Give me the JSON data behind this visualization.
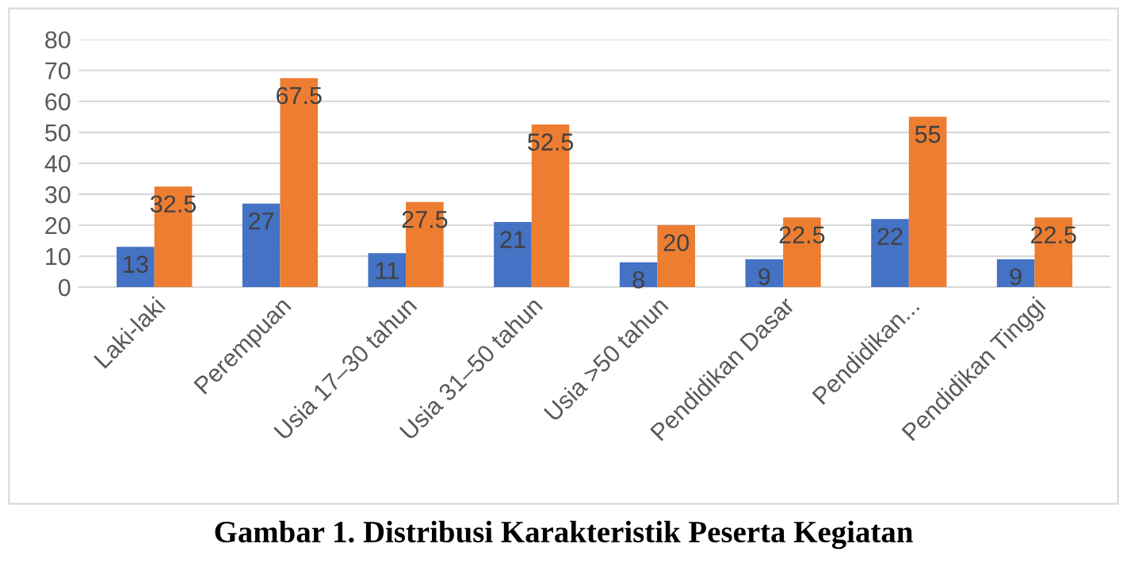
{
  "chart_data": {
    "type": "bar",
    "title": "Gambar 1. Distribusi Karakteristik Peserta Kegiatan",
    "categories": [
      "Laki-laki",
      "Perempuan",
      "Usia 17–30 tahun",
      "Usia 31–50 tahun",
      "Usia >50 tahun",
      "Pendidikan Dasar",
      "Pendidikan...",
      "Pendidikan Tinggi"
    ],
    "series": [
      {
        "color": "#4472c4",
        "values": [
          13,
          27,
          11,
          21,
          8,
          9,
          22,
          9
        ]
      },
      {
        "color": "#ed7d31",
        "values": [
          32.5,
          67.5,
          27.5,
          52.5,
          20,
          22.5,
          55,
          22.5
        ]
      }
    ],
    "ylim": [
      0,
      80
    ],
    "yticks": [
      0,
      10,
      20,
      30,
      40,
      50,
      60,
      70,
      80
    ],
    "grid": "y",
    "legend": false,
    "data_labels": true
  }
}
